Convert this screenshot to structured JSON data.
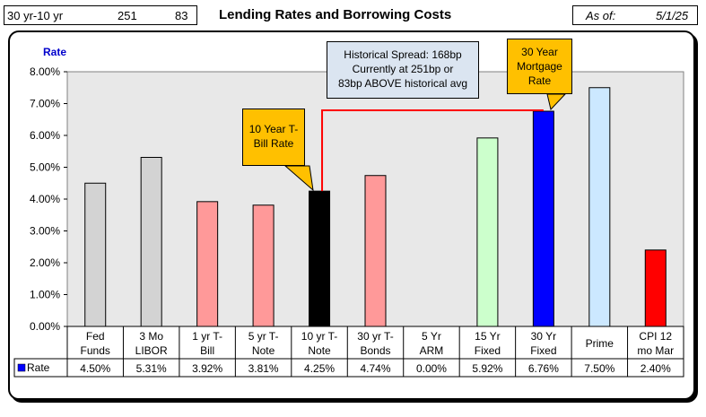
{
  "header": {
    "spread_label": "30 yr-10 yr",
    "spread_value": "251",
    "above_avg": "83",
    "title": "Lending Rates and Borrowing Costs",
    "asof_label": "As of:",
    "asof_date": "5/1/25"
  },
  "callouts": {
    "ten_year": "10 Year T-Bill Rate",
    "thirty_year": "30 Year Mortgage Rate",
    "spread_line1": "Historical Spread: 168bp",
    "spread_line2": "Currently at 251bp  or",
    "spread_line3": "83bp ABOVE historical avg"
  },
  "colors": {
    "gray": "#d3d3d3",
    "pink": "#ff9999",
    "black": "#000000",
    "green": "#ccffcc",
    "blue": "#0000ff",
    "lightblue": "#cce8ff",
    "red": "#ff0000",
    "spread_line": "#ff0000"
  },
  "chart_data": {
    "type": "bar",
    "ylabel": "Rate",
    "ylim": [
      0,
      8
    ],
    "ytick_labels": [
      "0.00%",
      "1.00%",
      "2.00%",
      "3.00%",
      "4.00%",
      "5.00%",
      "6.00%",
      "7.00%",
      "8.00%"
    ],
    "grid": false,
    "categories": [
      [
        "Fed",
        "Funds"
      ],
      [
        "3 Mo",
        "LIBOR"
      ],
      [
        "1 yr  T-",
        "Bill"
      ],
      [
        "5 yr T-",
        "Note"
      ],
      [
        "10 yr T-",
        "Note"
      ],
      [
        "30 yr T-",
        "Bonds"
      ],
      [
        "5 Yr",
        "ARM"
      ],
      [
        "15 Yr",
        "Fixed"
      ],
      [
        "30 Yr",
        "Fixed"
      ],
      [
        "Prime",
        ""
      ],
      [
        "CPI 12",
        "mo Mar"
      ]
    ],
    "series": [
      {
        "name": "Rate",
        "values": [
          4.5,
          5.31,
          3.92,
          3.81,
          4.25,
          4.74,
          0.0,
          5.92,
          6.76,
          7.5,
          2.4
        ],
        "value_labels": [
          "4.50%",
          "5.31%",
          "3.92%",
          "3.81%",
          "4.25%",
          "4.74%",
          "0.00%",
          "5.92%",
          "6.76%",
          "7.50%",
          "2.40%"
        ],
        "bar_colors": [
          "gray",
          "gray",
          "pink",
          "pink",
          "black",
          "pink",
          "pink",
          "green",
          "blue",
          "lightblue",
          "red"
        ]
      }
    ],
    "legend": "table-left"
  }
}
